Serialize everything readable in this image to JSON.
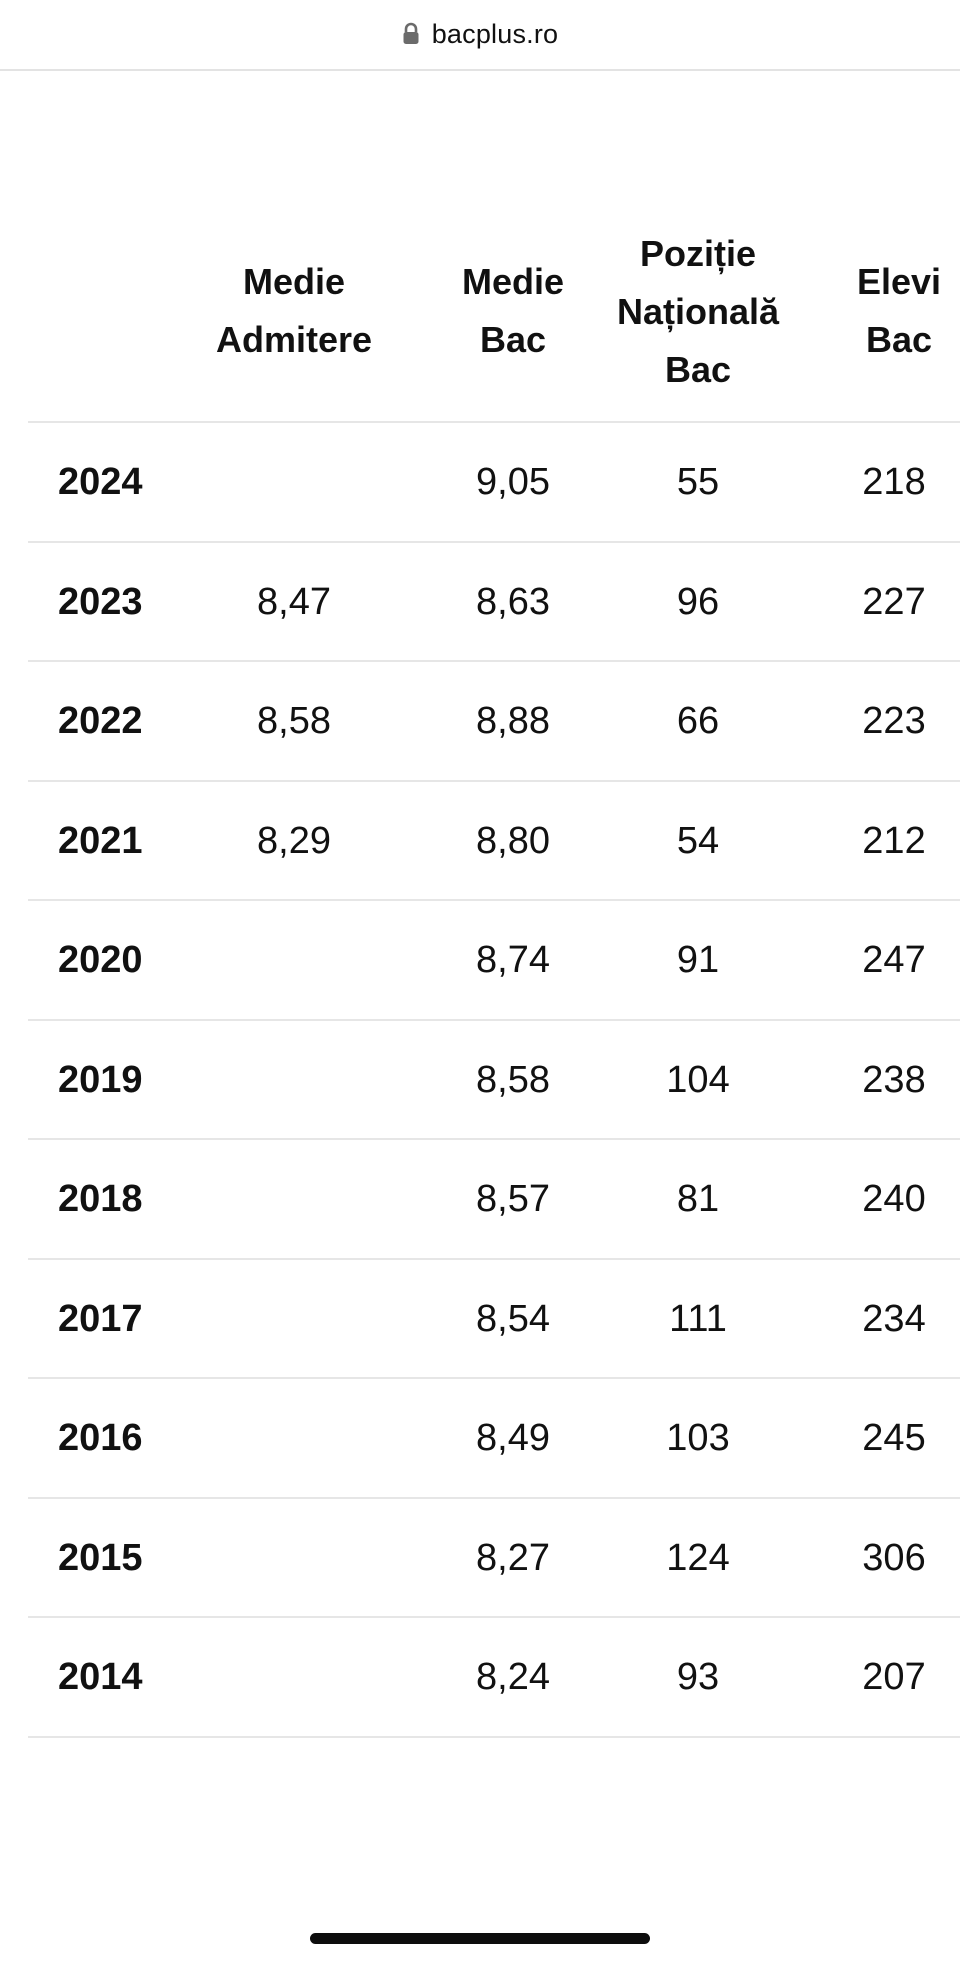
{
  "browser": {
    "url": "bacplus.ro",
    "lock_icon": "lock-icon"
  },
  "table": {
    "headers": {
      "admitere": "Medie Admitere",
      "bac": "Medie Bac",
      "pozitie": "Poziție Națională Bac",
      "elevi": "Elevi Bac"
    },
    "rows": [
      {
        "year": "2024",
        "admitere": "",
        "bac": "9,05",
        "pozitie": "55",
        "elevi": "218"
      },
      {
        "year": "2023",
        "admitere": "8,47",
        "bac": "8,63",
        "pozitie": "96",
        "elevi": "227"
      },
      {
        "year": "2022",
        "admitere": "8,58",
        "bac": "8,88",
        "pozitie": "66",
        "elevi": "223"
      },
      {
        "year": "2021",
        "admitere": "8,29",
        "bac": "8,80",
        "pozitie": "54",
        "elevi": "212"
      },
      {
        "year": "2020",
        "admitere": "",
        "bac": "8,74",
        "pozitie": "91",
        "elevi": "247"
      },
      {
        "year": "2019",
        "admitere": "",
        "bac": "8,58",
        "pozitie": "104",
        "elevi": "238"
      },
      {
        "year": "2018",
        "admitere": "",
        "bac": "8,57",
        "pozitie": "81",
        "elevi": "240"
      },
      {
        "year": "2017",
        "admitere": "",
        "bac": "8,54",
        "pozitie": "111",
        "elevi": "234"
      },
      {
        "year": "2016",
        "admitere": "",
        "bac": "8,49",
        "pozitie": "103",
        "elevi": "245"
      },
      {
        "year": "2015",
        "admitere": "",
        "bac": "8,27",
        "pozitie": "124",
        "elevi": "306"
      },
      {
        "year": "2014",
        "admitere": "",
        "bac": "8,24",
        "pozitie": "93",
        "elevi": "207"
      }
    ]
  }
}
